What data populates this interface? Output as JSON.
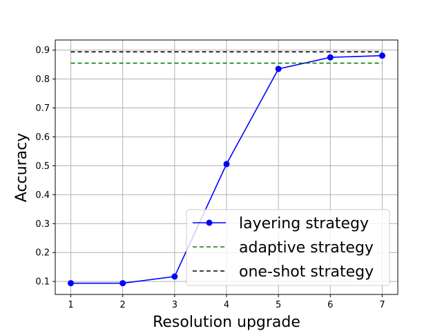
{
  "chart_data": {
    "type": "line",
    "xlabel": "Resolution upgrade",
    "ylabel": "Accuracy",
    "xlim": [
      0.7,
      7.3
    ],
    "ylim": [
      0.055,
      0.935
    ],
    "xticks": [
      1,
      2,
      3,
      4,
      5,
      6,
      7
    ],
    "yticks": [
      0.1,
      0.2,
      0.3,
      0.4,
      0.5,
      0.6,
      0.7,
      0.8,
      0.9
    ],
    "grid": true,
    "legend_position": "lower-right",
    "series": [
      {
        "name": "layering strategy",
        "style": "solid-marker",
        "color": "#0000ff",
        "x": [
          1,
          2,
          3,
          4,
          5,
          6,
          7
        ],
        "values": [
          0.094,
          0.094,
          0.117,
          0.506,
          0.835,
          0.875,
          0.881
        ]
      },
      {
        "name": "adaptive strategy",
        "style": "dashed",
        "color": "#008000",
        "x": [
          1,
          7
        ],
        "values": [
          0.855,
          0.855
        ]
      },
      {
        "name": "one-shot strategy",
        "style": "dashed",
        "color": "#000000",
        "x": [
          1,
          7
        ],
        "values": [
          0.894,
          0.894
        ]
      }
    ]
  }
}
